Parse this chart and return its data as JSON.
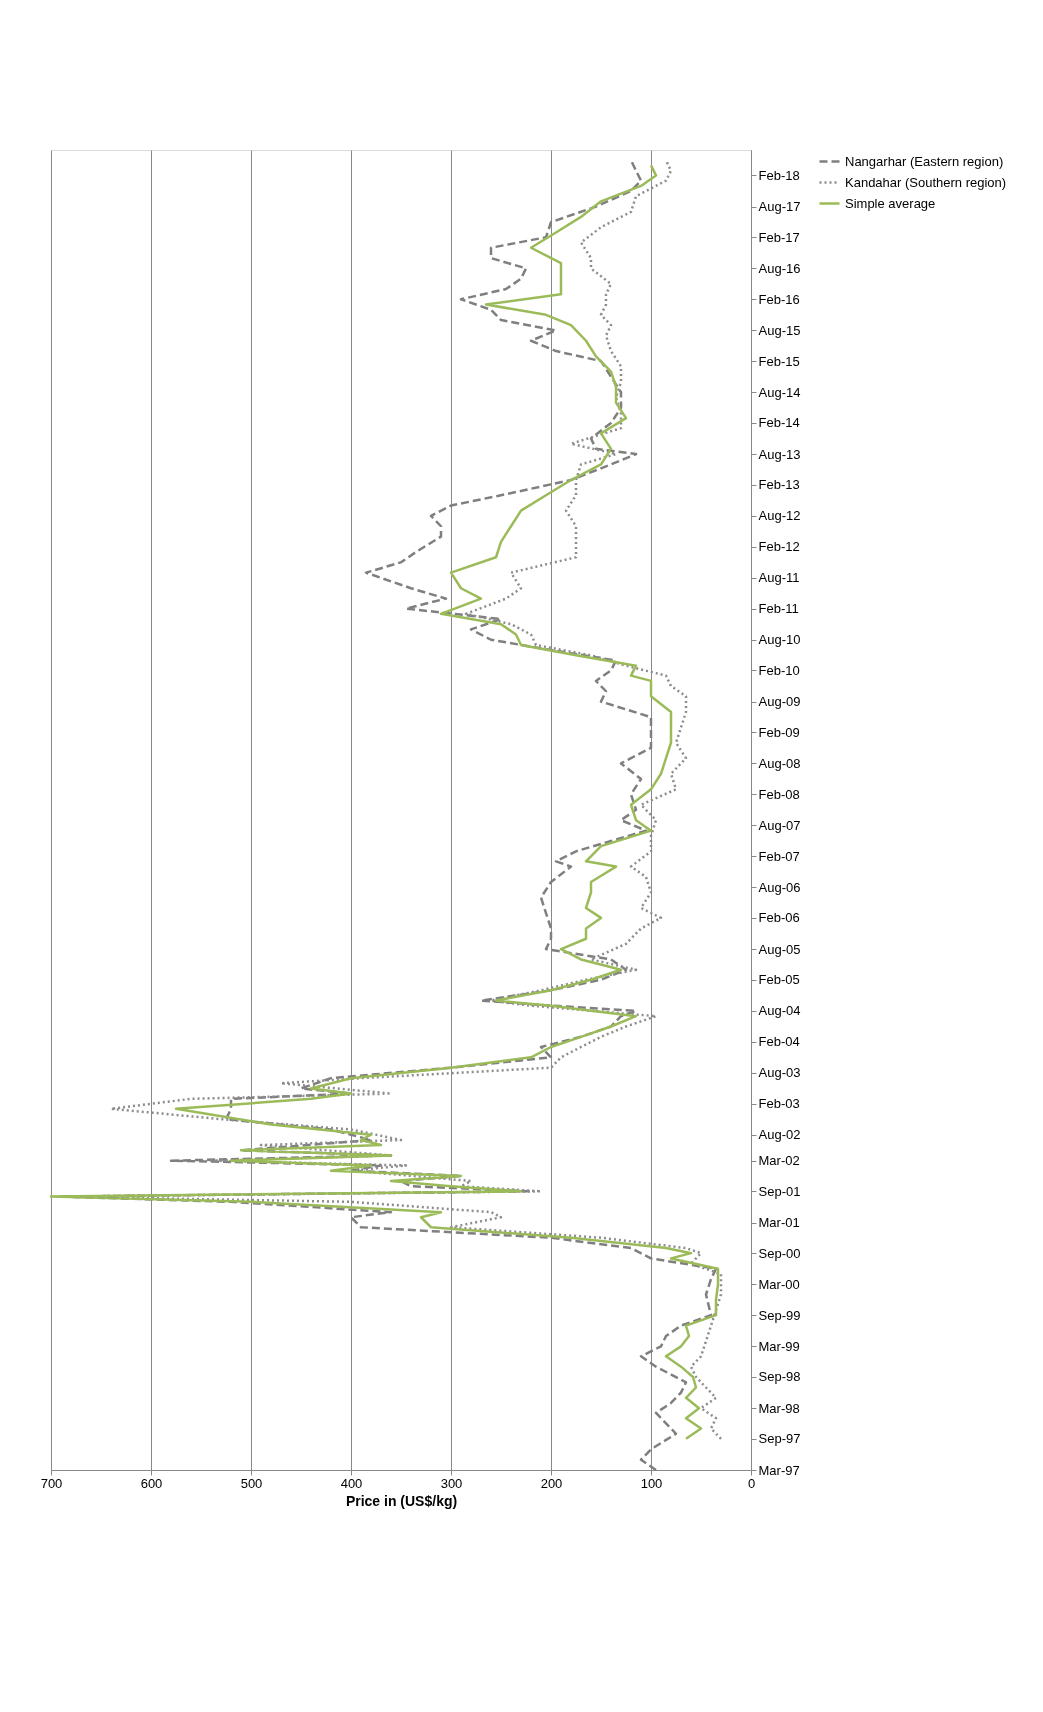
{
  "chart_data": {
    "type": "line",
    "orientation": "horizontal",
    "xlabel": "Price in (US$/kg)",
    "xlim": [
      700,
      0
    ],
    "xticks": [
      700,
      600,
      500,
      400,
      300,
      200,
      100,
      0
    ],
    "ylim": [
      "1997-03",
      "2018-07"
    ],
    "yticks": [
      {
        "value": "1997-03",
        "label": "Mar-97"
      },
      {
        "value": "1997-09",
        "label": "Sep-97"
      },
      {
        "value": "1998-03",
        "label": "Mar-98"
      },
      {
        "value": "1998-09",
        "label": "Sep-98"
      },
      {
        "value": "1999-03",
        "label": "Mar-99"
      },
      {
        "value": "1999-09",
        "label": "Sep-99"
      },
      {
        "value": "2000-03",
        "label": "Mar-00"
      },
      {
        "value": "2000-09",
        "label": "Sep-00"
      },
      {
        "value": "2001-03",
        "label": "Mar-01"
      },
      {
        "value": "2001-09",
        "label": "Sep-01"
      },
      {
        "value": "2002-03",
        "label": "Mar-02"
      },
      {
        "value": "2002-08",
        "label": "Aug-02"
      },
      {
        "value": "2003-02",
        "label": "Feb-03"
      },
      {
        "value": "2003-08",
        "label": "Aug-03"
      },
      {
        "value": "2004-02",
        "label": "Feb-04"
      },
      {
        "value": "2004-08",
        "label": "Aug-04"
      },
      {
        "value": "2005-02",
        "label": "Feb-05"
      },
      {
        "value": "2005-08",
        "label": "Aug-05"
      },
      {
        "value": "2006-02",
        "label": "Feb-06"
      },
      {
        "value": "2006-08",
        "label": "Aug-06"
      },
      {
        "value": "2007-02",
        "label": "Feb-07"
      },
      {
        "value": "2007-08",
        "label": "Aug-07"
      },
      {
        "value": "2008-02",
        "label": "Feb-08"
      },
      {
        "value": "2008-08",
        "label": "Aug-08"
      },
      {
        "value": "2009-02",
        "label": "Feb-09"
      },
      {
        "value": "2009-08",
        "label": "Aug-09"
      },
      {
        "value": "2010-02",
        "label": "Feb-10"
      },
      {
        "value": "2010-08",
        "label": "Aug-10"
      },
      {
        "value": "2011-02",
        "label": "Feb-11"
      },
      {
        "value": "2011-08",
        "label": "Aug-11"
      },
      {
        "value": "2012-02",
        "label": "Feb-12"
      },
      {
        "value": "2012-08",
        "label": "Aug-12"
      },
      {
        "value": "2013-02",
        "label": "Feb-13"
      },
      {
        "value": "2013-08",
        "label": "Aug-13"
      },
      {
        "value": "2014-02",
        "label": "Feb-14"
      },
      {
        "value": "2014-08",
        "label": "Aug-14"
      },
      {
        "value": "2015-02",
        "label": "Feb-15"
      },
      {
        "value": "2015-08",
        "label": "Aug-15"
      },
      {
        "value": "2016-02",
        "label": "Feb-16"
      },
      {
        "value": "2016-08",
        "label": "Aug-16"
      },
      {
        "value": "2017-02",
        "label": "Feb-17"
      },
      {
        "value": "2017-08",
        "label": "Aug-17"
      },
      {
        "value": "2018-02",
        "label": "Feb-18"
      }
    ],
    "grid": "x",
    "legend": "right",
    "series": [
      {
        "name": "Nangarhar (Eastern region)",
        "color": "#7f7f7f",
        "line_style": "dashed",
        "x": [
          "1997-03",
          "1997-05",
          "1997-07",
          "1997-10",
          "1997-12",
          "1998-02",
          "1998-04",
          "1998-06",
          "1998-08",
          "1998-11",
          "1999-01",
          "1999-03",
          "1999-05",
          "1999-07",
          "1999-09",
          "2000-01",
          "2000-04",
          "2000-06",
          "2000-08",
          "2000-10",
          "2000-12",
          "2001-02",
          "2001-04",
          "2001-05",
          "2001-07",
          "2001-08",
          "2001-09",
          "2001-10",
          "2001-11",
          "2001-12",
          "2002-01",
          "2002-02",
          "2002-03",
          "2002-04",
          "2002-05",
          "2002-07",
          "2002-09",
          "2002-11",
          "2003-01",
          "2003-03",
          "2003-04",
          "2003-05",
          "2003-07",
          "2003-09",
          "2003-11",
          "2004-01",
          "2004-03",
          "2004-05",
          "2004-07",
          "2004-08",
          "2004-09",
          "2004-10",
          "2004-12",
          "2005-02",
          "2005-04",
          "2005-06",
          "2005-08",
          "2005-10",
          "2005-12",
          "2006-03",
          "2006-06",
          "2006-09",
          "2006-12",
          "2007-01",
          "2007-03",
          "2007-05",
          "2007-07",
          "2007-09",
          "2007-11",
          "2008-02",
          "2008-05",
          "2008-08",
          "2008-11",
          "2009-02",
          "2009-05",
          "2009-08",
          "2009-10",
          "2009-12",
          "2010-02",
          "2010-04",
          "2010-06",
          "2010-08",
          "2010-10",
          "2010-12",
          "2011-02",
          "2011-04",
          "2011-06",
          "2011-09",
          "2011-11",
          "2012-01",
          "2012-04",
          "2012-06",
          "2012-08",
          "2012-10",
          "2012-12",
          "2013-03",
          "2013-06",
          "2013-08",
          "2013-09",
          "2013-11",
          "2014-02",
          "2014-05",
          "2014-08",
          "2014-11",
          "2015-02",
          "2015-04",
          "2015-06",
          "2015-08",
          "2015-10",
          "2015-12",
          "2016-02",
          "2016-04",
          "2016-06",
          "2016-08",
          "2016-10",
          "2016-12",
          "2017-02",
          "2017-05",
          "2017-08",
          "2017-11",
          "2018-01",
          "2018-03",
          "2018-05"
        ],
        "values": [
          95,
          110,
          100,
          75,
          85,
          95,
          80,
          70,
          65,
          95,
          110,
          90,
          85,
          70,
          40,
          45,
          40,
          35,
          100,
          120,
          200,
          390,
          400,
          360,
          520,
          690,
          220,
          340,
          350,
          290,
          400,
          370,
          580,
          360,
          510,
          380,
          420,
          525,
          520,
          520,
          400,
          450,
          420,
          300,
          200,
          210,
          170,
          140,
          130,
          115,
          200,
          270,
          200,
          150,
          125,
          140,
          205,
          200,
          200,
          205,
          210,
          200,
          180,
          195,
          175,
          140,
          105,
          130,
          115,
          120,
          110,
          130,
          100,
          100,
          100,
          150,
          145,
          155,
          140,
          135,
          200,
          260,
          280,
          250,
          345,
          305,
          340,
          385,
          350,
          335,
          310,
          310,
          320,
          300,
          250,
          180,
          140,
          115,
          155,
          160,
          140,
          130,
          130,
          140,
          150,
          195,
          220,
          195,
          250,
          260,
          290,
          245,
          230,
          225,
          260,
          260,
          205,
          200,
          155,
          120,
          110,
          115,
          120
        ]
      },
      {
        "name": "Kandahar (Southern region)",
        "color": "#8c8c8c",
        "line_style": "dotted",
        "x": [
          "1997-09",
          "1997-11",
          "1998-01",
          "1998-03",
          "1998-05",
          "1998-07",
          "1998-09",
          "1998-11",
          "1999-01",
          "1999-04",
          "1999-07",
          "1999-10",
          "2000-01",
          "2000-05",
          "2000-07",
          "2000-09",
          "2000-10",
          "2000-12",
          "2001-02",
          "2001-04",
          "2001-05",
          "2001-07",
          "2001-08",
          "2001-09",
          "2001-10",
          "2001-11",
          "2002-01",
          "2002-02",
          "2002-03",
          "2002-04",
          "2002-06",
          "2002-07",
          "2002-09",
          "2002-11",
          "2003-01",
          "2003-03",
          "2003-04",
          "2003-06",
          "2003-07",
          "2003-09",
          "2003-11",
          "2004-01",
          "2004-03",
          "2004-05",
          "2004-07",
          "2004-09",
          "2004-10",
          "2004-12",
          "2005-02",
          "2005-04",
          "2005-06",
          "2005-09",
          "2005-12",
          "2006-02",
          "2006-04",
          "2006-07",
          "2006-10",
          "2006-12",
          "2007-03",
          "2007-06",
          "2007-09",
          "2007-12",
          "2008-03",
          "2008-06",
          "2008-09",
          "2008-12",
          "2009-03",
          "2009-06",
          "2009-09",
          "2009-11",
          "2010-01",
          "2010-03",
          "2010-05",
          "2010-07",
          "2010-09",
          "2010-11",
          "2011-01",
          "2011-04",
          "2011-06",
          "2011-09",
          "2011-12",
          "2012-03",
          "2012-06",
          "2012-09",
          "2012-12",
          "2013-03",
          "2013-06",
          "2013-08",
          "2013-10",
          "2014-01",
          "2014-04",
          "2014-07",
          "2014-10",
          "2015-01",
          "2015-04",
          "2015-07",
          "2015-09",
          "2015-11",
          "2016-01",
          "2016-03",
          "2016-05",
          "2016-08",
          "2016-10",
          "2017-01",
          "2017-04",
          "2017-07",
          "2017-10",
          "2018-01",
          "2018-03",
          "2018-05"
        ],
        "values": [
          30,
          40,
          35,
          50,
          35,
          45,
          55,
          60,
          50,
          45,
          40,
          35,
          30,
          30,
          60,
          50,
          65,
          150,
          300,
          250,
          260,
          400,
          690,
          210,
          290,
          280,
          400,
          345,
          540,
          360,
          490,
          350,
          400,
          530,
          640,
          560,
          360,
          470,
          390,
          200,
          190,
          170,
          150,
          125,
          95,
          220,
          260,
          210,
          165,
          115,
          160,
          125,
          110,
          90,
          110,
          100,
          105,
          120,
          100,
          100,
          95,
          110,
          75,
          80,
          65,
          75,
          70,
          65,
          65,
          80,
          85,
          125,
          160,
          215,
          220,
          240,
          285,
          245,
          230,
          240,
          175,
          175,
          175,
          185,
          175,
          175,
          170,
          135,
          180,
          130,
          130,
          135,
          130,
          130,
          140,
          145,
          140,
          150,
          145,
          145,
          140,
          160,
          160,
          170,
          150,
          120,
          115,
          85,
          80,
          85
        ]
      },
      {
        "name": "Simple average",
        "color": "#9bbb59",
        "line_style": "solid",
        "x": [
          "1997-09",
          "1997-11",
          "1998-01",
          "1998-03",
          "1998-05",
          "1998-07",
          "1998-09",
          "1998-11",
          "1999-01",
          "1999-03",
          "1999-05",
          "1999-07",
          "1999-09",
          "1999-12",
          "2000-03",
          "2000-06",
          "2000-08",
          "2000-09",
          "2000-10",
          "2000-12",
          "2001-02",
          "2001-04",
          "2001-05",
          "2001-07",
          "2001-08",
          "2001-09",
          "2001-10",
          "2001-11",
          "2001-12",
          "2002-01",
          "2002-02",
          "2002-03",
          "2002-04",
          "2002-05",
          "2002-06",
          "2002-07",
          "2002-08",
          "2002-10",
          "2003-01",
          "2003-03",
          "2003-04",
          "2003-05",
          "2003-07",
          "2003-09",
          "2003-11",
          "2004-01",
          "2004-03",
          "2004-05",
          "2004-07",
          "2004-09",
          "2004-10",
          "2004-12",
          "2005-02",
          "2005-04",
          "2005-06",
          "2005-08",
          "2005-10",
          "2005-12",
          "2006-02",
          "2006-04",
          "2006-07",
          "2006-09",
          "2006-12",
          "2007-01",
          "2007-04",
          "2007-07",
          "2007-09",
          "2007-12",
          "2008-03",
          "2008-06",
          "2008-09",
          "2008-12",
          "2009-03",
          "2009-06",
          "2009-09",
          "2009-12",
          "2010-01",
          "2010-03",
          "2010-05",
          "2010-07",
          "2010-09",
          "2010-11",
          "2011-01",
          "2011-04",
          "2011-06",
          "2011-09",
          "2011-12",
          "2012-03",
          "2012-06",
          "2012-09",
          "2012-12",
          "2013-03",
          "2013-06",
          "2013-09",
          "2013-12",
          "2014-03",
          "2014-06",
          "2014-09",
          "2014-12",
          "2015-03",
          "2015-06",
          "2015-09",
          "2015-11",
          "2016-01",
          "2016-03",
          "2016-06",
          "2016-09",
          "2016-12",
          "2017-03",
          "2017-06",
          "2017-09",
          "2017-12",
          "2018-02",
          "2018-04"
        ],
        "values": [
          65,
          50,
          65,
          52,
          65,
          55,
          58,
          70,
          85,
          70,
          62,
          65,
          35,
          35,
          33,
          33,
          80,
          60,
          85,
          180,
          320,
          330,
          310,
          500,
          700,
          230,
          300,
          360,
          290,
          420,
          380,
          520,
          360,
          510,
          370,
          390,
          380,
          480,
          575,
          440,
          400,
          440,
          400,
          300,
          220,
          200,
          170,
          140,
          115,
          200,
          255,
          200,
          160,
          130,
          170,
          190,
          165,
          165,
          150,
          165,
          160,
          160,
          135,
          165,
          150,
          100,
          115,
          120,
          100,
          90,
          85,
          80,
          80,
          80,
          100,
          100,
          120,
          115,
          175,
          230,
          235,
          250,
          310,
          270,
          290,
          300,
          255,
          250,
          240,
          230,
          205,
          180,
          150,
          140,
          150,
          125,
          135,
          135,
          140,
          155,
          165,
          180,
          205,
          265,
          190,
          190,
          190,
          220,
          195,
          170,
          150,
          110,
          95,
          100
        ]
      }
    ]
  }
}
